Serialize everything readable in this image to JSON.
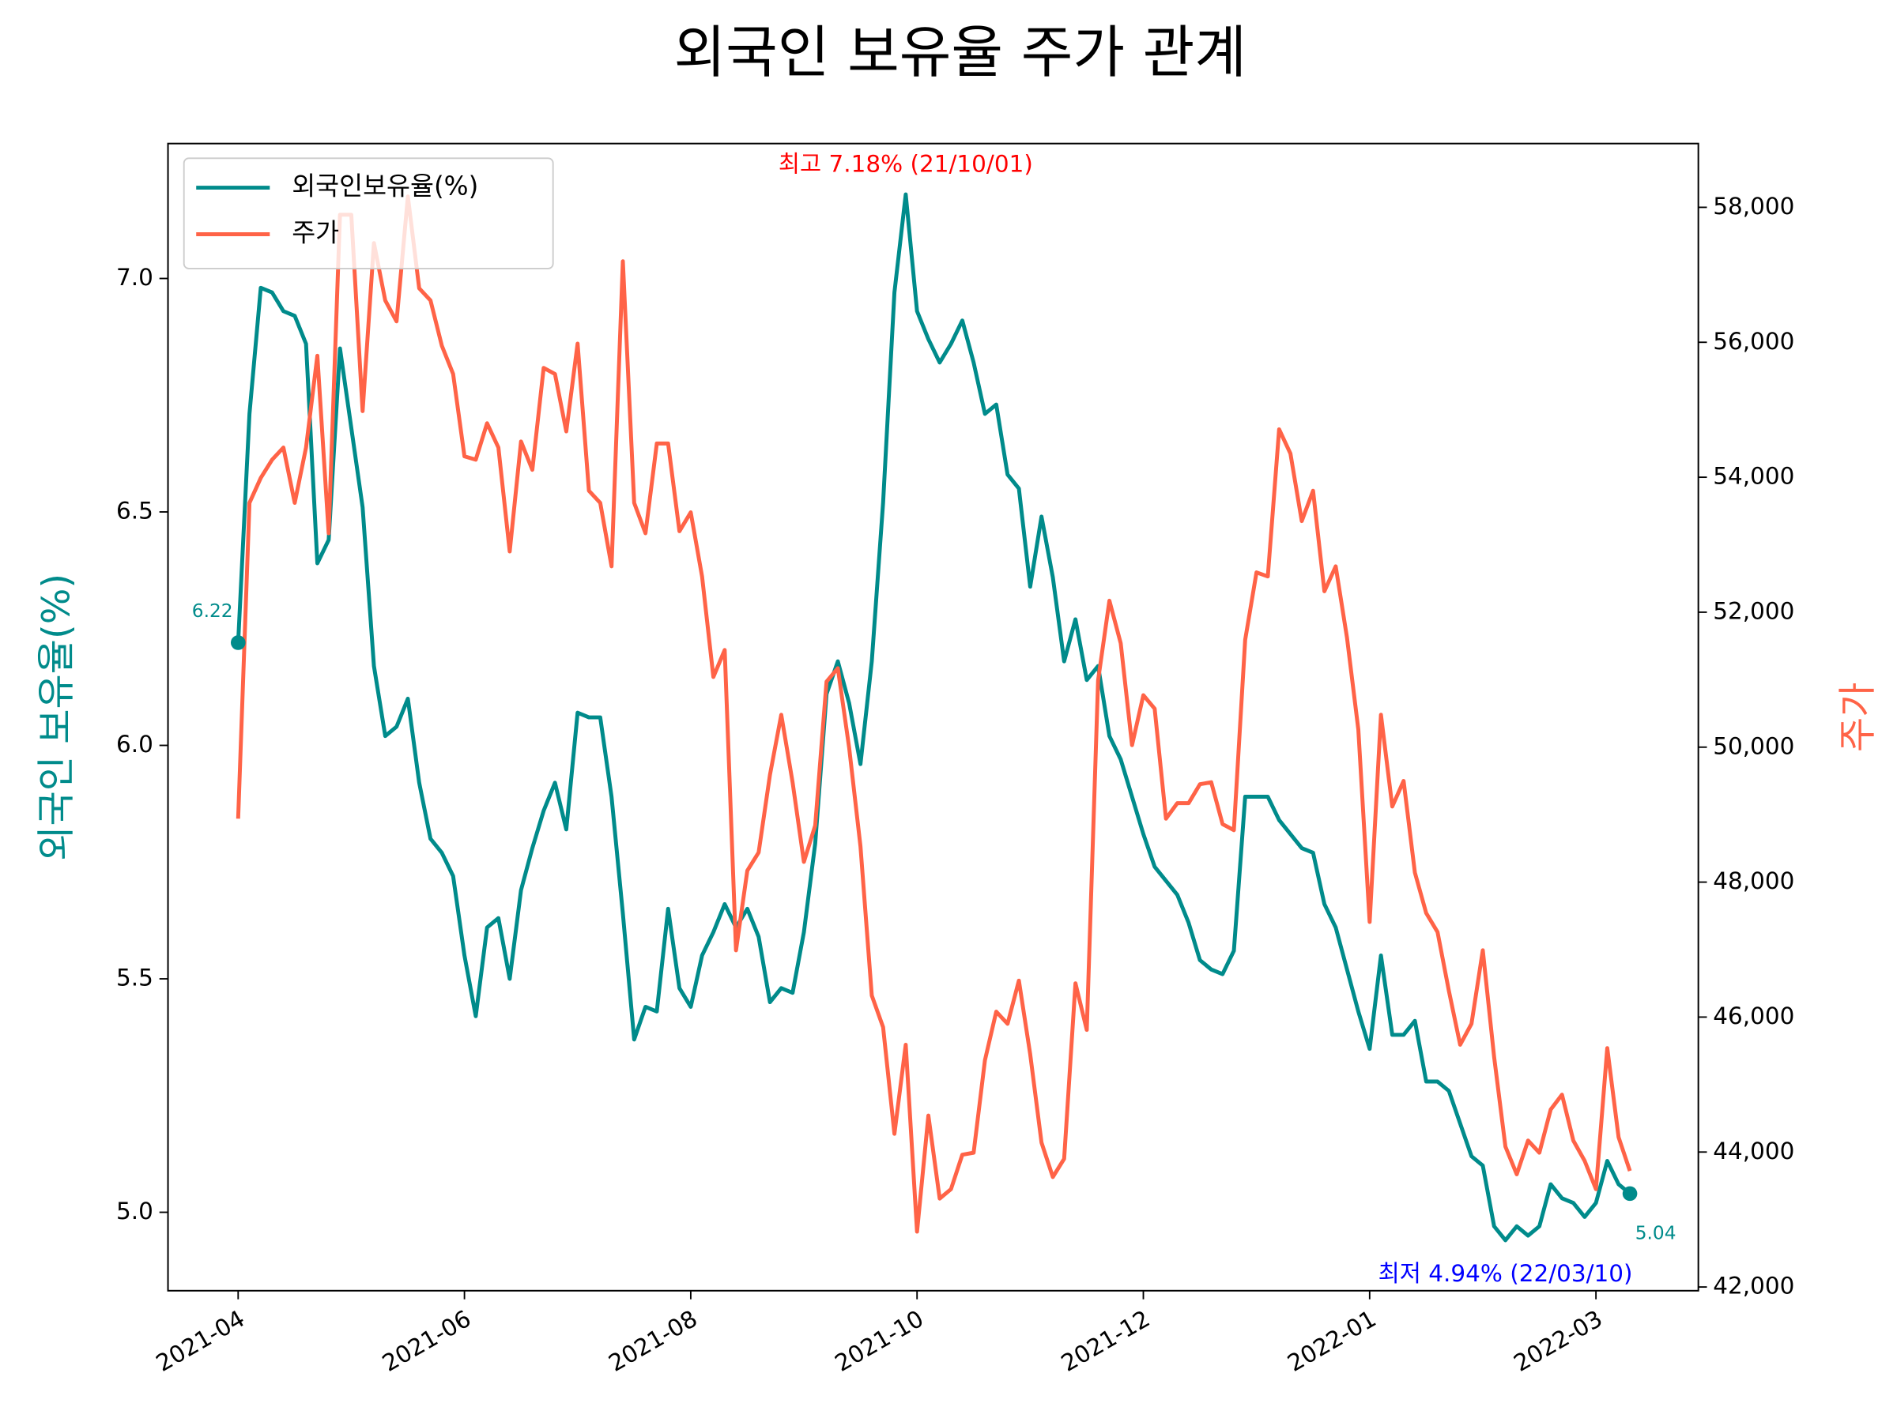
{
  "chart_data": {
    "type": "line",
    "title": "외국인 보유율 주가 관계",
    "ylabel": "외국인 보유율(%)",
    "y2label": "주가",
    "x": [
      0,
      2,
      4,
      6,
      8,
      10,
      12,
      14,
      16,
      18,
      20,
      22,
      24,
      26,
      28,
      30,
      32,
      34,
      36,
      38,
      40,
      42,
      44,
      46,
      48,
      50,
      52,
      54,
      56,
      58,
      60,
      62,
      64,
      66,
      68,
      70,
      72,
      74,
      76,
      78,
      80,
      82,
      84,
      86,
      88,
      90,
      92,
      94,
      96,
      98,
      100,
      102,
      104,
      106,
      108,
      110,
      112,
      114,
      116,
      118,
      120,
      122,
      124,
      126,
      128,
      130,
      132,
      134,
      136,
      138,
      140,
      142,
      144,
      146,
      148,
      150,
      152,
      154,
      156,
      158,
      160,
      162,
      164,
      166,
      168,
      170,
      172,
      174,
      176,
      178,
      180,
      182,
      184,
      186,
      188,
      190,
      192,
      194,
      196,
      198,
      200,
      202,
      204,
      206,
      208,
      210,
      212,
      214,
      216,
      218,
      220,
      222,
      224,
      226,
      228,
      230,
      232,
      234,
      236,
      238,
      240,
      242,
      244,
      246
    ],
    "xlim": [
      -12.4,
      258.1
    ],
    "xticks": [
      {
        "value": 0,
        "label": "2021-04"
      },
      {
        "value": 40,
        "label": "2021-06"
      },
      {
        "value": 80,
        "label": "2021-08"
      },
      {
        "value": 120,
        "label": "2021-10"
      },
      {
        "value": 160,
        "label": "2021-12"
      },
      {
        "value": 200,
        "label": "2022-01"
      },
      {
        "value": 240,
        "label": "2022-03"
      }
    ],
    "ylim": [
      4.832,
      7.289
    ],
    "yticks": [
      {
        "value": 5,
        "label": "5.0"
      },
      5.5,
      {
        "value": 6,
        "label": "6.0"
      },
      6.5,
      {
        "value": 7,
        "label": "7.0"
      }
    ],
    "y2lim": [
      41945,
      58945
    ],
    "y2ticks": [
      {
        "value": 42000,
        "label": "42,000"
      },
      {
        "value": 44000,
        "label": "44,000"
      },
      {
        "value": 46000,
        "label": "46,000"
      },
      {
        "value": 48000,
        "label": "48,000"
      },
      {
        "value": 50000,
        "label": "50,000"
      },
      {
        "value": 52000,
        "label": "52,000"
      },
      {
        "value": 54000,
        "label": "54,000"
      },
      {
        "value": 56000,
        "label": "56,000"
      },
      {
        "value": 58000,
        "label": "58,000"
      }
    ],
    "series": [
      {
        "name": "외국인보유율(%)",
        "color": "#008b8b",
        "values": [
          6.22,
          6.71,
          6.98,
          6.97,
          6.93,
          6.92,
          6.86,
          6.39,
          6.44,
          6.85,
          6.68,
          6.51,
          6.17,
          6.02,
          6.04,
          6.1,
          5.92,
          5.8,
          5.77,
          5.72,
          5.55,
          5.42,
          5.61,
          5.63,
          5.5,
          5.69,
          5.78,
          5.86,
          5.92,
          5.82,
          6.07,
          6.06,
          6.06,
          5.89,
          5.64,
          5.37,
          5.44,
          5.43,
          5.65,
          5.48,
          5.44,
          5.55,
          5.6,
          5.66,
          5.61,
          5.65,
          5.59,
          5.45,
          5.48,
          5.47,
          5.6,
          5.79,
          6.11,
          6.18,
          6.09,
          5.96,
          6.18,
          6.52,
          6.97,
          7.18,
          6.93,
          6.87,
          6.82,
          6.86,
          6.91,
          6.82,
          6.71,
          6.73,
          6.58,
          6.55,
          6.34,
          6.49,
          6.36,
          6.18,
          6.27,
          6.14,
          6.17,
          6.02,
          5.97,
          5.89,
          5.81,
          5.74,
          5.71,
          5.68,
          5.62,
          5.54,
          5.52,
          5.51,
          5.56,
          5.89,
          5.89,
          5.89,
          5.84,
          5.81,
          5.78,
          5.77,
          5.66,
          5.61,
          5.52,
          5.43,
          5.35,
          5.55,
          5.38,
          5.38,
          5.41,
          5.28,
          5.28,
          5.26,
          5.19,
          5.12,
          5.1,
          4.97,
          4.94,
          4.97,
          4.95,
          4.97,
          5.06,
          5.03,
          5.02,
          4.99,
          5.02,
          5.11,
          5.06,
          5.04
        ]
      },
      {
        "name": "주가",
        "color": "#ff6347",
        "axis": "y2",
        "values": [
          48940,
          53620,
          53990,
          54260,
          54440,
          53620,
          54440,
          55800,
          53170,
          57890,
          57890,
          54980,
          57470,
          56620,
          56310,
          58160,
          56800,
          56620,
          55950,
          55530,
          54310,
          54260,
          54800,
          54440,
          52900,
          54530,
          54110,
          55620,
          55530,
          54680,
          55980,
          53800,
          53620,
          52680,
          57200,
          53620,
          53170,
          54500,
          54500,
          53200,
          53480,
          52530,
          51040,
          51440,
          46990,
          48170,
          48440,
          49590,
          50480,
          49480,
          48300,
          48840,
          50970,
          51170,
          49990,
          48530,
          46320,
          45850,
          44270,
          45590,
          42820,
          44540,
          43310,
          43450,
          43960,
          43990,
          45360,
          46080,
          45900,
          46540,
          45450,
          44140,
          43630,
          43900,
          46500,
          45810,
          50990,
          52170,
          51540,
          50030,
          50770,
          50570,
          48940,
          49170,
          49170,
          49450,
          49480,
          48860,
          48770,
          51590,
          52590,
          52530,
          54710,
          54350,
          53350,
          53800,
          52310,
          52680,
          51620,
          50260,
          47410,
          50480,
          49120,
          49500,
          48140,
          47540,
          47260,
          46390,
          45590,
          45900,
          46990,
          45410,
          44080,
          43670,
          44170,
          43990,
          44630,
          44850,
          44170,
          43870,
          43450,
          45540,
          44220,
          43720
        ]
      }
    ],
    "annotations": [
      "최고 7.18% (21/10/01)",
      "최저 4.94% (22/03/10)"
    ],
    "annotation_colors": [
      "red",
      "blue"
    ],
    "legend": "upper left",
    "grid": false
  }
}
